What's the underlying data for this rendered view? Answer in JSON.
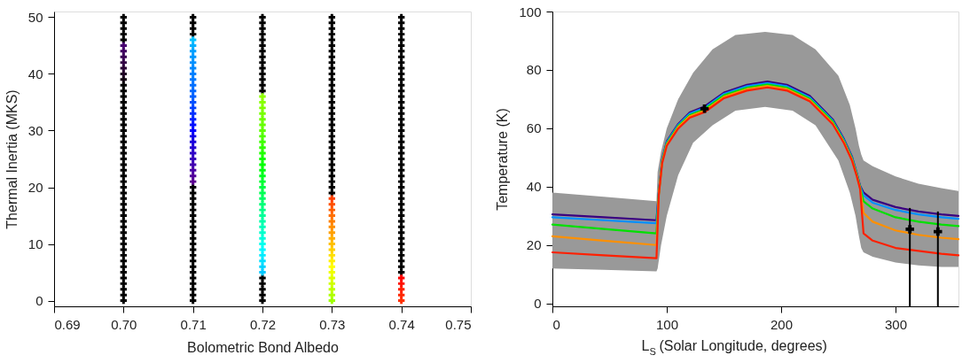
{
  "chart_data": [
    {
      "type": "scatter",
      "xlabel": "Bolometric Bond Albedo",
      "ylabel": "Thermal Inertia (MKS)",
      "xlim": [
        0.69,
        0.75
      ],
      "ylim": [
        -1,
        51
      ],
      "xticks": [
        {
          "value": 0.69,
          "label": "0.69"
        },
        {
          "value": 0.7,
          "label": "0.70"
        },
        {
          "value": 0.71,
          "label": "0.71"
        },
        {
          "value": 0.72,
          "label": "0.72"
        },
        {
          "value": 0.73,
          "label": "0.73"
        },
        {
          "value": 0.74,
          "label": "0.74"
        },
        {
          "value": 0.75,
          "label": "0.75"
        }
      ],
      "yticks": [
        0,
        10,
        20,
        30,
        40,
        50
      ],
      "grid": false,
      "marker": "cross",
      "series": [
        {
          "color": "#000000",
          "x": [
            0.7,
            0.7,
            0.7,
            0.7,
            0.7,
            0.7,
            0.7,
            0.7,
            0.7,
            0.7,
            0.7,
            0.7,
            0.7,
            0.7,
            0.7,
            0.7,
            0.7,
            0.7,
            0.7,
            0.7,
            0.7,
            0.7,
            0.7,
            0.7,
            0.7,
            0.7,
            0.7,
            0.7,
            0.7,
            0.7,
            0.7,
            0.7,
            0.7,
            0.7,
            0.7,
            0.7,
            0.7,
            0.7,
            0.7,
            0.7,
            0.7,
            0.7,
            0.7
          ],
          "values": [
            0,
            1,
            2,
            3,
            4,
            5,
            6,
            7,
            8,
            9,
            10,
            11,
            12,
            13,
            14,
            15,
            16,
            17,
            18,
            19,
            20,
            21,
            22,
            23,
            24,
            25,
            26,
            27,
            28,
            29,
            30,
            31,
            32,
            33,
            34,
            35,
            36,
            37,
            46,
            47,
            48,
            49,
            50
          ]
        },
        {
          "x": [
            0.7,
            0.7,
            0.7,
            0.7,
            0.7,
            0.7,
            0.7,
            0.7
          ],
          "values": [
            38,
            39,
            40,
            41,
            42,
            43,
            44,
            45
          ],
          "colors": [
            "#000000",
            "#100010",
            "#200025",
            "#2a0035",
            "#330045",
            "#3a0055",
            "#400060",
            "#480070"
          ]
        },
        {
          "color": "#000000",
          "x": [
            0.71,
            0.71,
            0.71,
            0.71,
            0.71,
            0.71,
            0.71,
            0.71,
            0.71,
            0.71,
            0.71,
            0.71,
            0.71,
            0.71,
            0.71,
            0.71,
            0.71,
            0.71,
            0.71,
            0.71,
            0.71,
            0.71,
            0.71,
            0.71,
            0.71
          ],
          "values": [
            0,
            1,
            2,
            3,
            4,
            5,
            6,
            7,
            8,
            9,
            10,
            11,
            12,
            13,
            14,
            15,
            16,
            17,
            18,
            19,
            20,
            47,
            48,
            49,
            50
          ]
        },
        {
          "x": [
            0.71,
            0.71,
            0.71,
            0.71,
            0.71,
            0.71,
            0.71,
            0.71,
            0.71,
            0.71,
            0.71,
            0.71,
            0.71,
            0.71,
            0.71,
            0.71,
            0.71,
            0.71,
            0.71,
            0.71,
            0.71,
            0.71,
            0.71,
            0.71,
            0.71,
            0.71
          ],
          "values": [
            21,
            22,
            23,
            24,
            25,
            26,
            27,
            28,
            29,
            30,
            31,
            32,
            33,
            34,
            35,
            36,
            37,
            38,
            39,
            40,
            41,
            42,
            43,
            44,
            45,
            46
          ],
          "colors": [
            "#5a0090",
            "#52009a",
            "#4a00a5",
            "#4200b0",
            "#3800bb",
            "#2e00c6",
            "#2400d1",
            "#1a00dc",
            "#1000e8",
            "#0000ff",
            "#0010ff",
            "#0020ff",
            "#0030ff",
            "#0040ff",
            "#0050ff",
            "#0060ff",
            "#0068ff",
            "#0070ff",
            "#0078ff",
            "#0080ff",
            "#0088ff",
            "#0090ff",
            "#0098ff",
            "#00a0ff",
            "#00b0ff",
            "#00c0ff"
          ]
        },
        {
          "color": "#000000",
          "x": [
            0.72,
            0.72,
            0.72,
            0.72,
            0.72,
            0.72,
            0.72,
            0.72,
            0.72,
            0.72,
            0.72,
            0.72,
            0.72,
            0.72,
            0.72,
            0.72,
            0.72,
            0.72,
            0.72
          ],
          "values": [
            0,
            1,
            2,
            3,
            4,
            37,
            38,
            39,
            40,
            41,
            42,
            43,
            44,
            45,
            46,
            47,
            48,
            49,
            50
          ]
        },
        {
          "x": [
            0.72,
            0.72,
            0.72,
            0.72,
            0.72,
            0.72,
            0.72,
            0.72,
            0.72,
            0.72,
            0.72,
            0.72,
            0.72,
            0.72,
            0.72,
            0.72,
            0.72,
            0.72,
            0.72,
            0.72,
            0.72,
            0.72,
            0.72,
            0.72,
            0.72,
            0.72,
            0.72,
            0.72,
            0.72,
            0.72,
            0.72,
            0.72
          ],
          "values": [
            5,
            6,
            7,
            8,
            9,
            10,
            11,
            12,
            13,
            14,
            15,
            16,
            17,
            18,
            19,
            20,
            21,
            22,
            23,
            24,
            25,
            26,
            27,
            28,
            29,
            30,
            31,
            32,
            33,
            34,
            35,
            36
          ],
          "colors": [
            "#00c8ff",
            "#00d4ff",
            "#00e0ff",
            "#00ecff",
            "#00f8ff",
            "#00ffee",
            "#00ffdd",
            "#00ffcc",
            "#00ffbb",
            "#00ffaa",
            "#00ff99",
            "#00ff88",
            "#00ff77",
            "#00ff66",
            "#00ff55",
            "#00ff44",
            "#00ff33",
            "#00ff22",
            "#00ff11",
            "#00ff00",
            "#10ff00",
            "#20ff00",
            "#30ff00",
            "#40ff00",
            "#50ff00",
            "#60ff00",
            "#68ff00",
            "#70ff00",
            "#78ff00",
            "#80ff00",
            "#88ff00",
            "#90ff00"
          ]
        },
        {
          "color": "#000000",
          "x": [
            0.73,
            0.73,
            0.73,
            0.73,
            0.73,
            0.73,
            0.73,
            0.73,
            0.73,
            0.73,
            0.73,
            0.73,
            0.73,
            0.73,
            0.73,
            0.73,
            0.73,
            0.73,
            0.73,
            0.73,
            0.73,
            0.73,
            0.73,
            0.73,
            0.73,
            0.73,
            0.73,
            0.73,
            0.73,
            0.73,
            0.73,
            0.73
          ],
          "values": [
            19,
            20,
            21,
            22,
            23,
            24,
            25,
            26,
            27,
            28,
            29,
            30,
            31,
            32,
            33,
            34,
            35,
            36,
            37,
            38,
            39,
            40,
            41,
            42,
            43,
            44,
            45,
            46,
            47,
            48,
            49,
            50
          ]
        },
        {
          "x": [
            0.73,
            0.73,
            0.73,
            0.73,
            0.73,
            0.73,
            0.73,
            0.73,
            0.73,
            0.73,
            0.73,
            0.73,
            0.73,
            0.73,
            0.73,
            0.73,
            0.73,
            0.73,
            0.73
          ],
          "values": [
            0,
            1,
            2,
            3,
            4,
            5,
            6,
            7,
            8,
            9,
            10,
            11,
            12,
            13,
            14,
            15,
            16,
            17,
            18
          ],
          "colors": [
            "#a0ff00",
            "#b0ff00",
            "#c0ff00",
            "#d0ff00",
            "#e0ff00",
            "#f0ff00",
            "#ffff00",
            "#fff000",
            "#ffe000",
            "#ffd000",
            "#ffc000",
            "#ffb000",
            "#ffa000",
            "#ff9000",
            "#ff8000",
            "#ff7000",
            "#ff6000",
            "#ff5000",
            "#ff4000"
          ]
        },
        {
          "color": "#000000",
          "x": [
            0.74,
            0.74,
            0.74,
            0.74,
            0.74,
            0.74,
            0.74,
            0.74,
            0.74,
            0.74,
            0.74,
            0.74,
            0.74,
            0.74,
            0.74,
            0.74,
            0.74,
            0.74,
            0.74,
            0.74,
            0.74,
            0.74,
            0.74,
            0.74,
            0.74,
            0.74,
            0.74,
            0.74,
            0.74,
            0.74,
            0.74,
            0.74,
            0.74,
            0.74,
            0.74,
            0.74,
            0.74,
            0.74,
            0.74,
            0.74,
            0.74,
            0.74,
            0.74,
            0.74,
            0.74,
            0.74
          ],
          "values": [
            5,
            6,
            7,
            8,
            9,
            10,
            11,
            12,
            13,
            14,
            15,
            16,
            17,
            18,
            19,
            20,
            21,
            22,
            23,
            24,
            25,
            26,
            27,
            28,
            29,
            30,
            31,
            32,
            33,
            34,
            35,
            36,
            37,
            38,
            39,
            40,
            41,
            42,
            43,
            44,
            45,
            46,
            47,
            48,
            49,
            50
          ]
        },
        {
          "x": [
            0.74,
            0.74,
            0.74,
            0.74,
            0.74
          ],
          "values": [
            0,
            1,
            2,
            3,
            4
          ],
          "colors": [
            "#ff3000",
            "#ff2800",
            "#ff2000",
            "#ff1000",
            "#ff0000"
          ]
        }
      ]
    },
    {
      "type": "line",
      "xlabel": "L$_{S}$ (Solar Longitude, degrees)",
      "ylabel": "Temperature (K)",
      "xlim": [
        0,
        355
      ],
      "ylim": [
        -1,
        100
      ],
      "xticks": [
        0,
        100,
        200,
        300
      ],
      "yticks": [
        0,
        20,
        40,
        60,
        80,
        100
      ],
      "grid": false,
      "line_style": "solid",
      "series": [
        {
          "type": "area",
          "color": "#999999",
          "x": [
            0,
            45,
            91,
            92,
            95,
            100,
            110,
            123,
            140,
            160,
            186,
            210,
            230,
            250,
            260,
            265,
            268,
            270,
            272,
            280,
            300,
            320,
            340,
            355
          ],
          "values": [
            null,
            null,
            null,
            null,
            null,
            null,
            null,
            null,
            null,
            null,
            null,
            null,
            null,
            null,
            null,
            null,
            null,
            null,
            null,
            null,
            null,
            null,
            null,
            null
          ],
          "lower": [
            12,
            11.5,
            11,
            12,
            20,
            30,
            44,
            55,
            61,
            66,
            67.3,
            66,
            61,
            49,
            38,
            30,
            23,
            19,
            17.5,
            16,
            14,
            13,
            12.5,
            12.5
          ],
          "upper": [
            38,
            36.5,
            35,
            45,
            52,
            60,
            70,
            79,
            87,
            92,
            93,
            92,
            87,
            78,
            68,
            60,
            54,
            51,
            49,
            47,
            43.5,
            41,
            39.5,
            38.5
          ]
        },
        {
          "color": "#3a0080",
          "x": [
            0,
            45,
            91,
            93,
            96,
            100,
            110,
            120,
            133,
            150,
            170,
            188,
            205,
            225,
            245,
            255,
            262,
            266,
            269,
            272,
            280,
            300,
            320,
            340,
            355
          ],
          "values": [
            30.5,
            29.5,
            28.5,
            38,
            49.4,
            55.5,
            61.5,
            65.4,
            67.5,
            72.2,
            74.9,
            76,
            74.9,
            71.1,
            63.1,
            56.2,
            50.2,
            44.8,
            40.3,
            38,
            35.5,
            33,
            31.5,
            30.5,
            30
          ]
        },
        {
          "color": "#0090ff",
          "x": [
            0,
            45,
            91,
            93,
            96,
            100,
            110,
            120,
            133,
            150,
            170,
            188,
            205,
            225,
            245,
            255,
            262,
            266,
            269,
            272,
            280,
            300,
            320,
            340,
            355
          ],
          "values": [
            29.5,
            28.5,
            27.5,
            37.8,
            49.1,
            55.2,
            61.2,
            65,
            67,
            71.8,
            74.4,
            75.5,
            74.4,
            70.6,
            62.7,
            55.9,
            49.9,
            44.6,
            40.1,
            37,
            34.5,
            32,
            30.5,
            29.5,
            29
          ]
        },
        {
          "color": "#00e000",
          "x": [
            0,
            45,
            91,
            93,
            96,
            100,
            110,
            120,
            133,
            150,
            170,
            188,
            205,
            225,
            245,
            255,
            262,
            266,
            269,
            272,
            280,
            300,
            320,
            340,
            355
          ],
          "values": [
            27,
            25.5,
            24,
            37.5,
            48.8,
            54.8,
            60.8,
            64.5,
            66.5,
            71.3,
            73.9,
            75,
            73.9,
            70.1,
            62.3,
            55.5,
            49.5,
            44.3,
            39.8,
            35,
            32.5,
            29.5,
            28,
            27,
            26.5
          ]
        },
        {
          "color": "#ff9000",
          "x": [
            0,
            45,
            91,
            93,
            96,
            100,
            110,
            120,
            133,
            150,
            170,
            188,
            205,
            225,
            245,
            255,
            262,
            266,
            269,
            272,
            280,
            300,
            320,
            340,
            355
          ],
          "values": [
            23,
            21.5,
            20,
            37.3,
            48.4,
            54.4,
            60.4,
            64.1,
            66,
            70.8,
            73.4,
            74.5,
            73.4,
            69.7,
            61.8,
            55.2,
            49.2,
            44,
            39.5,
            31,
            28,
            25,
            23.5,
            22.5,
            22
          ]
        },
        {
          "color": "#ff2000",
          "x": [
            0,
            45,
            91,
            93,
            96,
            100,
            110,
            120,
            133,
            150,
            170,
            188,
            205,
            225,
            245,
            255,
            262,
            266,
            269,
            272,
            280,
            300,
            320,
            340,
            355
          ],
          "values": [
            17.5,
            16.5,
            15.5,
            37,
            48.1,
            54,
            59.9,
            63.6,
            65.5,
            70.3,
            72.9,
            74,
            72.9,
            69.2,
            61.4,
            54.8,
            48.8,
            43.7,
            39.2,
            24,
            21.5,
            19,
            18,
            17,
            16.5
          ]
        },
        {
          "type": "scatter",
          "marker": "cross",
          "color": "#000000",
          "x": [
            133,
            312.5,
            337
          ],
          "values": [
            66.7,
            25.4,
            24.6
          ],
          "errors": [
            null,
            [
              -1,
              32.7
            ],
            [
              -1,
              31.5
            ]
          ]
        }
      ]
    }
  ]
}
